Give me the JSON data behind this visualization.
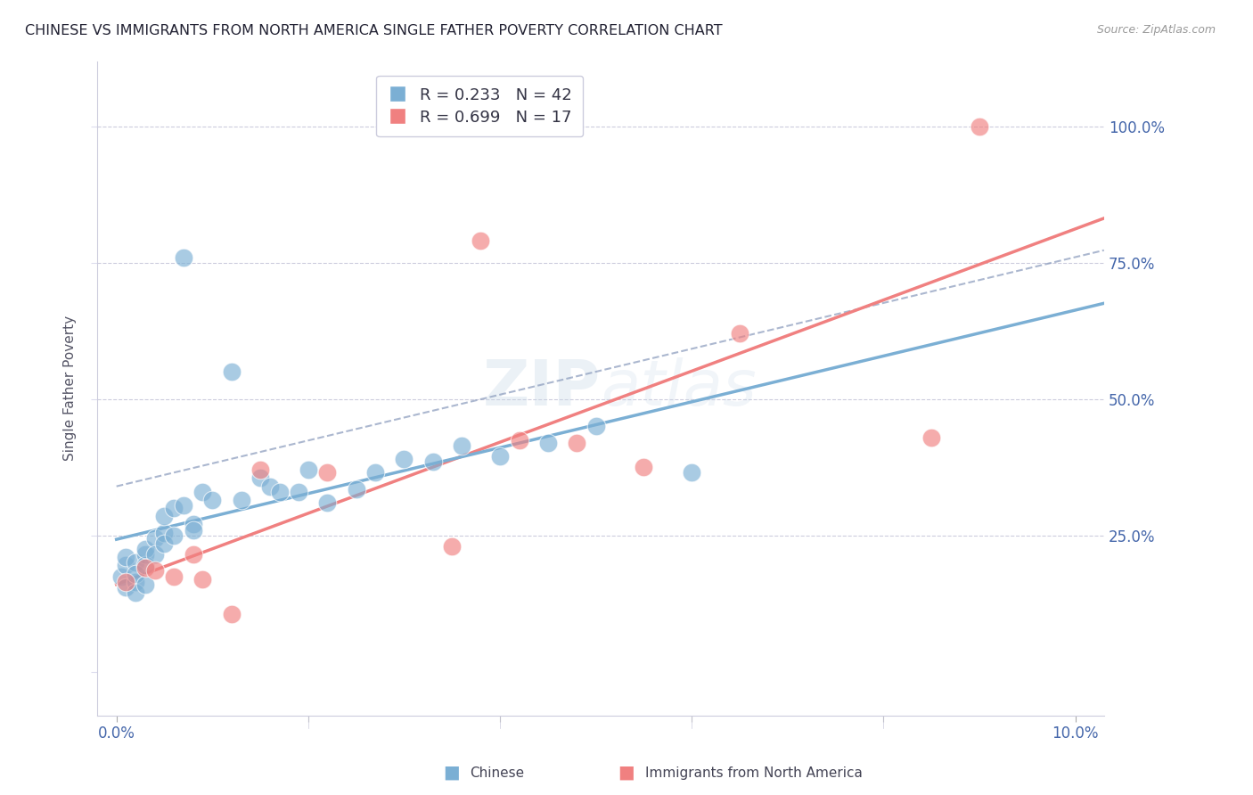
{
  "title": "CHINESE VS IMMIGRANTS FROM NORTH AMERICA SINGLE FATHER POVERTY CORRELATION CHART",
  "source": "Source: ZipAtlas.com",
  "ylabel": "Single Father Poverty",
  "blue_color": "#7BAFD4",
  "pink_color": "#F08080",
  "watermark_text": "ZIPatlas",
  "legend_line1": "R = 0.233   N = 42",
  "legend_line2": "R = 0.699   N = 17",
  "chinese_x": [
    0.0005,
    0.001,
    0.001,
    0.001,
    0.002,
    0.002,
    0.002,
    0.003,
    0.003,
    0.003,
    0.004,
    0.004,
    0.005,
    0.005,
    0.005,
    0.006,
    0.006,
    0.007,
    0.007,
    0.008,
    0.008,
    0.009,
    0.01,
    0.012,
    0.013,
    0.015,
    0.016,
    0.017,
    0.019,
    0.02,
    0.022,
    0.025,
    0.027,
    0.03,
    0.033,
    0.036,
    0.04,
    0.045,
    0.05,
    0.06,
    0.002,
    0.003
  ],
  "chinese_y": [
    0.175,
    0.155,
    0.195,
    0.21,
    0.165,
    0.2,
    0.18,
    0.215,
    0.195,
    0.225,
    0.245,
    0.215,
    0.255,
    0.285,
    0.235,
    0.3,
    0.25,
    0.305,
    0.76,
    0.27,
    0.26,
    0.33,
    0.315,
    0.55,
    0.315,
    0.355,
    0.34,
    0.33,
    0.33,
    0.37,
    0.31,
    0.335,
    0.365,
    0.39,
    0.385,
    0.415,
    0.395,
    0.42,
    0.45,
    0.365,
    0.145,
    0.16
  ],
  "imm_x": [
    0.001,
    0.003,
    0.004,
    0.006,
    0.008,
    0.009,
    0.012,
    0.015,
    0.022,
    0.035,
    0.038,
    0.042,
    0.048,
    0.055,
    0.065,
    0.085,
    0.09
  ],
  "imm_y": [
    0.165,
    0.19,
    0.185,
    0.175,
    0.215,
    0.17,
    0.105,
    0.37,
    0.365,
    0.23,
    0.79,
    0.425,
    0.42,
    0.375,
    0.62,
    0.43,
    1.0
  ],
  "xlim": [
    -0.002,
    0.103
  ],
  "ylim": [
    -0.08,
    1.12
  ],
  "x_ticks": [
    0.0,
    0.02,
    0.04,
    0.06,
    0.08,
    0.1
  ],
  "y_ticks": [
    0.0,
    0.25,
    0.5,
    0.75,
    1.0
  ]
}
